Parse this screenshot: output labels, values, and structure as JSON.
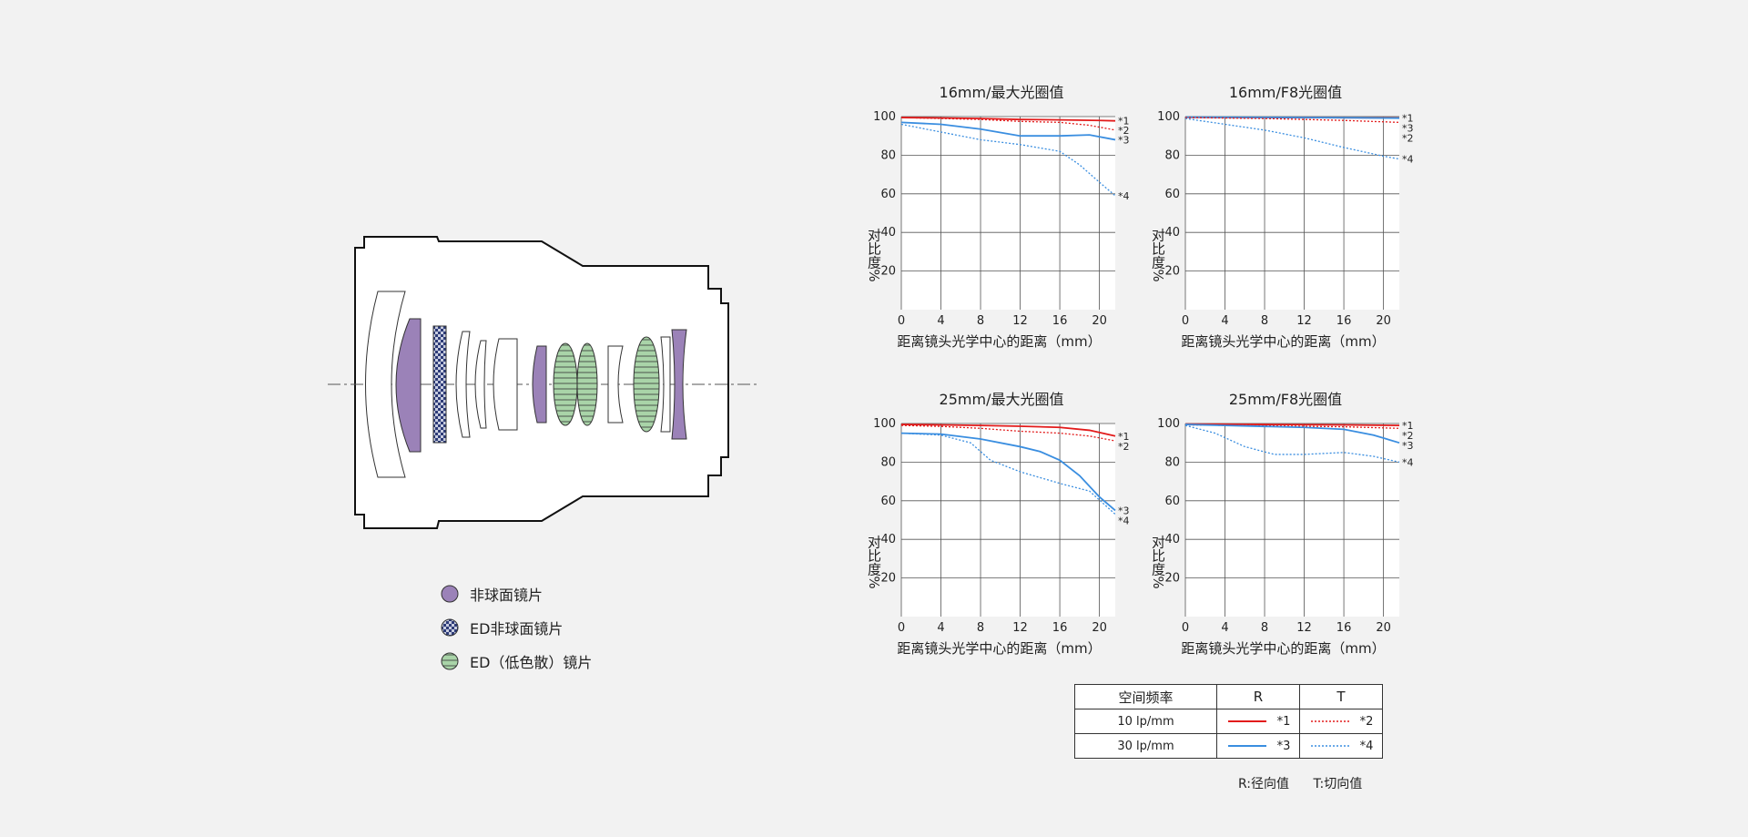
{
  "lens_legend": [
    {
      "icon": "purple-circle-icon",
      "label": "非球面镜片",
      "color": "#9b82b8"
    },
    {
      "icon": "checkered-circle-icon",
      "label": "ED非球面镜片",
      "color": "#2e3c78"
    },
    {
      "icon": "striped-green-circle-icon",
      "label": "ED（低色散）镜片",
      "color": "#a9d4a8"
    }
  ],
  "colors": {
    "red": "#e21b1b",
    "blue": "#3a8ee0"
  },
  "chart_data": [
    {
      "type": "line",
      "title": "16mm/最大光圈值",
      "xlabel": "距离镜头光学中心的距离（mm）",
      "ylabel": "对比度%",
      "xlim": [
        0,
        21.6
      ],
      "ylim": [
        0,
        100
      ],
      "xticks": [
        0,
        4,
        8,
        12,
        16,
        20
      ],
      "yticks": [
        20,
        40,
        60,
        80,
        100
      ],
      "series": [
        {
          "name": "*1",
          "style": "solid",
          "color": "red",
          "x": [
            0,
            4,
            8,
            12,
            16,
            20,
            21.6
          ],
          "y": [
            99.5,
            99.3,
            99,
            98.5,
            98.3,
            98,
            97.8
          ]
        },
        {
          "name": "*2",
          "style": "dotted",
          "color": "red",
          "x": [
            0,
            4,
            8,
            12,
            16,
            19,
            21.6
          ],
          "y": [
            99.5,
            99,
            98.5,
            97.5,
            97,
            95.5,
            93
          ]
        },
        {
          "name": "*3",
          "style": "solid",
          "color": "blue",
          "x": [
            0,
            4,
            8,
            12,
            16,
            19,
            21.6
          ],
          "y": [
            97,
            96,
            93.5,
            90,
            90,
            90.5,
            88
          ]
        },
        {
          "name": "*4",
          "style": "dotted",
          "color": "blue",
          "x": [
            0,
            4,
            8,
            12,
            16,
            18,
            20,
            21.6
          ],
          "y": [
            96,
            92,
            88,
            85.5,
            82,
            75,
            66,
            59
          ]
        }
      ]
    },
    {
      "type": "line",
      "title": "16mm/F8光圈值",
      "xlabel": "距离镜头光学中心的距离（mm）",
      "ylabel": "对比度%",
      "xlim": [
        0,
        21.6
      ],
      "ylim": [
        0,
        100
      ],
      "xticks": [
        0,
        4,
        8,
        12,
        16,
        20
      ],
      "yticks": [
        20,
        40,
        60,
        80,
        100
      ],
      "series": [
        {
          "name": "*1",
          "style": "solid",
          "color": "red",
          "x": [
            0,
            8,
            16,
            21.6
          ],
          "y": [
            99.6,
            99.5,
            99.4,
            99.3
          ]
        },
        {
          "name": "*3",
          "style": "solid",
          "color": "blue",
          "x": [
            0,
            8,
            16,
            21.6
          ],
          "y": [
            99.7,
            99.6,
            99.4,
            99.2
          ]
        },
        {
          "name": "*2",
          "style": "dotted",
          "color": "red",
          "x": [
            0,
            8,
            16,
            21.6
          ],
          "y": [
            99.5,
            99,
            98,
            97
          ]
        },
        {
          "name": "*4",
          "style": "dotted",
          "color": "blue",
          "x": [
            0,
            4,
            8,
            12,
            16,
            20,
            21.6
          ],
          "y": [
            99,
            96,
            93,
            89,
            84,
            79.5,
            78
          ]
        }
      ]
    },
    {
      "type": "line",
      "title": "25mm/最大光圈值",
      "xlabel": "距离镜头光学中心的距离（mm）",
      "ylabel": "对比度%",
      "xlim": [
        0,
        21.6
      ],
      "ylim": [
        0,
        100
      ],
      "xticks": [
        0,
        4,
        8,
        12,
        16,
        20
      ],
      "yticks": [
        20,
        40,
        60,
        80,
        100
      ],
      "series": [
        {
          "name": "*1",
          "style": "solid",
          "color": "red",
          "x": [
            0,
            4,
            8,
            12,
            16,
            19,
            21.6
          ],
          "y": [
            99.5,
            99.3,
            99,
            98.6,
            98,
            96.5,
            93.5
          ]
        },
        {
          "name": "*2",
          "style": "dotted",
          "color": "red",
          "x": [
            0,
            4,
            8,
            12,
            16,
            19,
            21.6
          ],
          "y": [
            99,
            98.5,
            97.5,
            96,
            95,
            93.5,
            91
          ]
        },
        {
          "name": "*3",
          "style": "solid",
          "color": "blue",
          "x": [
            0,
            4,
            8,
            12,
            14,
            16,
            18,
            20,
            21.6
          ],
          "y": [
            95,
            94.5,
            92,
            88,
            85.5,
            81,
            73,
            62,
            55
          ]
        },
        {
          "name": "*4",
          "style": "dotted",
          "color": "blue",
          "x": [
            0,
            4,
            7,
            9,
            12,
            16,
            19,
            21.6
          ],
          "y": [
            95,
            94,
            90,
            81,
            75,
            69,
            65,
            53
          ]
        }
      ]
    },
    {
      "type": "line",
      "title": "25mm/F8光圈值",
      "xlabel": "距离镜头光学中心的距离（mm）",
      "ylabel": "对比度%",
      "xlim": [
        0,
        21.6
      ],
      "ylim": [
        0,
        100
      ],
      "xticks": [
        0,
        4,
        8,
        12,
        16,
        20
      ],
      "yticks": [
        20,
        40,
        60,
        80,
        100
      ],
      "series": [
        {
          "name": "*1",
          "style": "solid",
          "color": "red",
          "x": [
            0,
            8,
            16,
            21.6
          ],
          "y": [
            99.7,
            99.5,
            99.3,
            99
          ]
        },
        {
          "name": "*2",
          "style": "dotted",
          "color": "red",
          "x": [
            0,
            8,
            16,
            21.6
          ],
          "y": [
            99.3,
            98.8,
            98.3,
            97.5
          ]
        },
        {
          "name": "*3",
          "style": "solid",
          "color": "blue",
          "x": [
            0,
            4,
            8,
            12,
            16,
            19,
            21.6
          ],
          "y": [
            99.5,
            99,
            98.5,
            98,
            97,
            94,
            90
          ]
        },
        {
          "name": "*4",
          "style": "dotted",
          "color": "blue",
          "x": [
            0,
            3,
            6,
            9,
            12,
            16,
            19,
            21.6
          ],
          "y": [
            99,
            95,
            88,
            84,
            84,
            85,
            83,
            80
          ]
        }
      ]
    }
  ],
  "mtf_table": {
    "header": [
      "空间频率",
      "R",
      "T"
    ],
    "rows": [
      {
        "freq": "10 lp/mm",
        "color": "red",
        "r_label": "*1",
        "t_label": "*2"
      },
      {
        "freq": "30 lp/mm",
        "color": "blue",
        "r_label": "*3",
        "t_label": "*4"
      }
    ]
  },
  "note": {
    "r": "R:径向值",
    "t": "T:切向值"
  }
}
